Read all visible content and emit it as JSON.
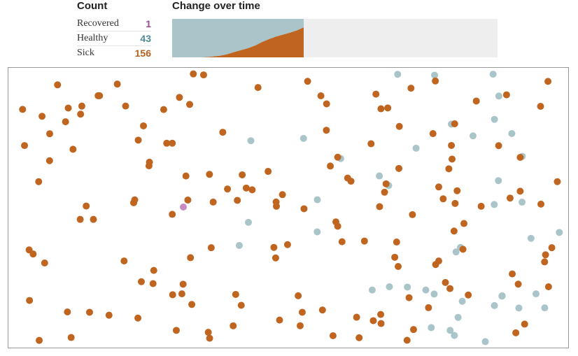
{
  "count": {
    "title": "Count",
    "rows": [
      {
        "label": "Recovered",
        "value": 1,
        "color": "#9b4a9b",
        "dot": "#c98bc4"
      },
      {
        "label": "Healthy",
        "value": 43,
        "color": "#4f8a96",
        "dot": "#a9c5ca"
      },
      {
        "label": "Sick",
        "value": 156,
        "color": "#b5601c",
        "dot": "#c0651f"
      }
    ]
  },
  "chart_data": {
    "type": "area",
    "title": "Change over time",
    "x": [
      0,
      1,
      2,
      3,
      4,
      5,
      6,
      7,
      8,
      9,
      10,
      11,
      12,
      13,
      14,
      15,
      16,
      17,
      18,
      19
    ],
    "xlim": [
      0,
      47
    ],
    "ylim": [
      0,
      200
    ],
    "series": [
      {
        "color": "#c0651f",
        "values": [
          0,
          0,
          0,
          0,
          0,
          2,
          5,
          9,
          17,
          28,
          38,
          48,
          62,
          80,
          95,
          108,
          118,
          128,
          140,
          156
        ]
      },
      {
        "color": "#c98bc4",
        "values": [
          0,
          0,
          0,
          0,
          0,
          0,
          0,
          0,
          0,
          0,
          0,
          0,
          0,
          0,
          0,
          0,
          0,
          0,
          0,
          1
        ]
      },
      {
        "color": "#a9c5ca",
        "values": [
          200,
          200,
          200,
          200,
          200,
          198,
          195,
          191,
          183,
          172,
          162,
          152,
          138,
          120,
          105,
          92,
          82,
          72,
          60,
          43
        ]
      }
    ]
  }
}
